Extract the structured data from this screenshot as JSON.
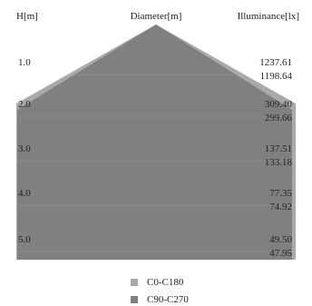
{
  "chart_data": {
    "type": "area",
    "headers": {
      "height": "H[m]",
      "diameter": "Diameter[m]",
      "illuminance": "Illuminance[lx]"
    },
    "heights": [
      "1.0",
      "2.0",
      "3.0",
      "4.0",
      "5.0"
    ],
    "series": [
      {
        "name": "C0-C180",
        "color": "#a9a9a9",
        "illuminance": [
          "1237.61",
          "309.40",
          "137.51",
          "77.35",
          "49.50"
        ]
      },
      {
        "name": "C90-C270",
        "color": "#808080",
        "illuminance": [
          "1198.64",
          "299.66",
          "133.18",
          "74.92",
          "47.95"
        ]
      }
    ]
  }
}
